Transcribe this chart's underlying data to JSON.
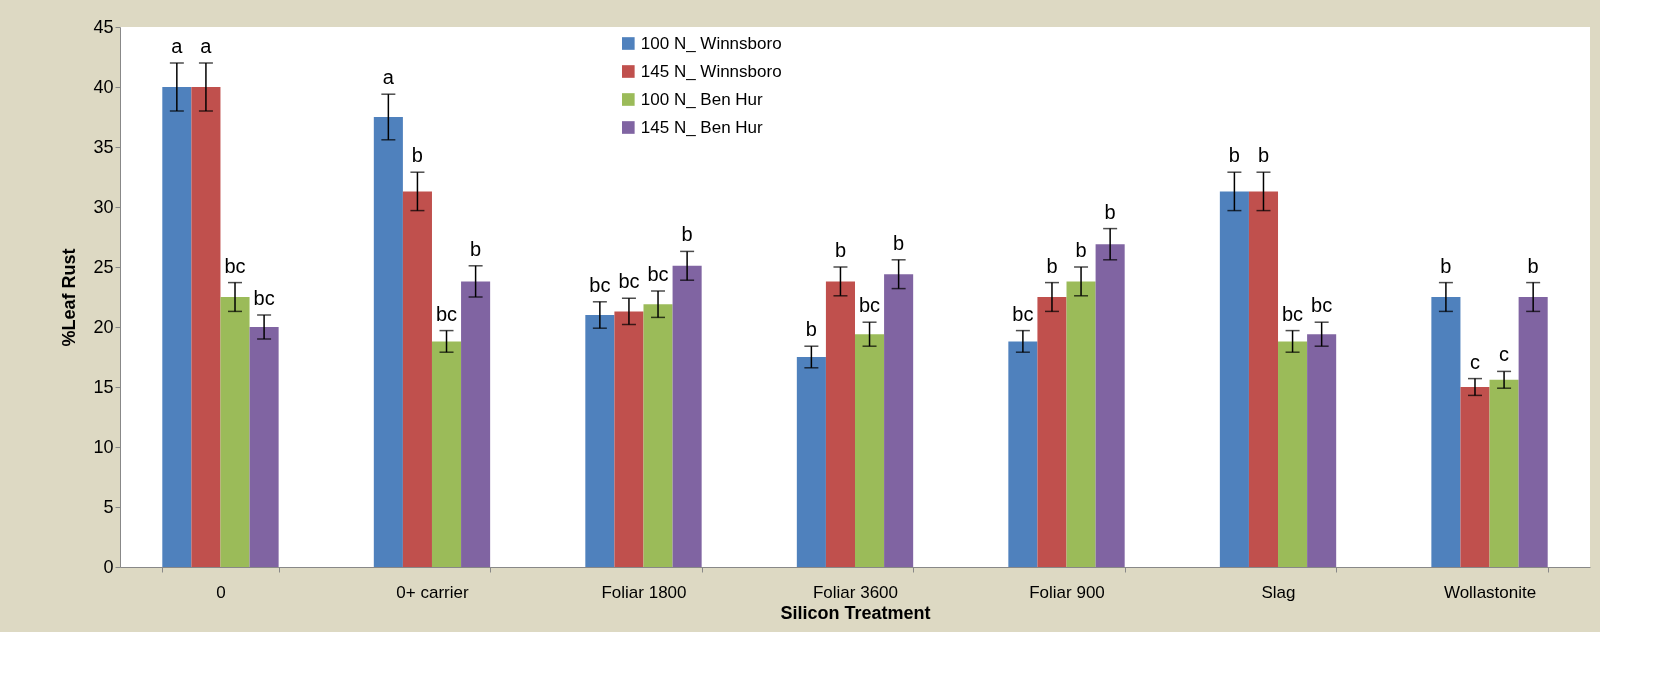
{
  "chart_data": {
    "type": "bar",
    "xlabel": "Silicon Treatment",
    "ylabel": "%Leaf Rust",
    "categories": [
      "0",
      "0+ carrier",
      "Foliar 1800",
      "Foliar 3600",
      "Foliar 900",
      "Slag",
      "Wollastonite"
    ],
    "series": [
      {
        "name": "100 N_ Winnsboro",
        "color": "#4f81bd",
        "values": [
          40,
          37.5,
          21,
          17.5,
          18.8,
          31.3,
          22.5
        ],
        "errors": [
          2,
          1.9,
          1.1,
          0.9,
          0.9,
          1.6,
          1.2
        ],
        "value_labels": [
          "a",
          "a",
          "bc",
          "b",
          "bc",
          "b",
          "b"
        ]
      },
      {
        "name": "145 N_ Winnsboro",
        "color": "#c0504d",
        "values": [
          40,
          31.3,
          21.3,
          23.8,
          22.5,
          31.3,
          15
        ],
        "errors": [
          2,
          1.6,
          1.1,
          1.2,
          1.2,
          1.6,
          0.7
        ],
        "value_labels": [
          "a",
          "b",
          "bc",
          "b",
          "b",
          "b",
          "c"
        ]
      },
      {
        "name": "100 N_ Ben Hur",
        "color": "#9bbb59",
        "values": [
          22.5,
          18.8,
          21.9,
          19.4,
          23.8,
          18.8,
          15.6
        ],
        "errors": [
          1.2,
          0.9,
          1.1,
          1.0,
          1.2,
          0.9,
          0.7
        ],
        "value_labels": [
          "bc",
          "bc",
          "bc",
          "bc",
          "b",
          "bc",
          "c"
        ]
      },
      {
        "name": "145 N_ Ben Hur",
        "color": "#8064a2",
        "values": [
          20,
          23.8,
          25.1,
          24.4,
          26.9,
          19.4,
          22.5
        ],
        "errors": [
          1.0,
          1.3,
          1.2,
          1.2,
          1.3,
          1.0,
          1.2
        ],
        "value_labels": [
          "bc",
          "b",
          "b",
          "b",
          "b",
          "bc",
          "b"
        ]
      }
    ],
    "ylim": [
      0,
      45
    ],
    "yticks": [
      0,
      5,
      10,
      15,
      20,
      25,
      30,
      35,
      40,
      45
    ],
    "grid": false,
    "legend": "top"
  }
}
